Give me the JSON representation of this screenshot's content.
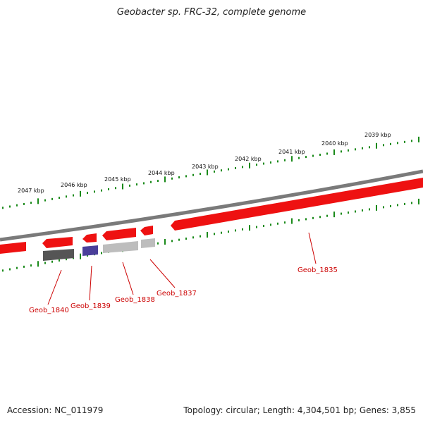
{
  "title": "Geobacter sp. FRC-32, complete genome",
  "footer": {
    "accession": "Accession: NC_011979",
    "topology": "Topology: circular; Length: 4,304,501 bp; Genes: 3,855"
  },
  "colors": {
    "backbone": "#7a7a7a",
    "gene_forward": "#ee1111",
    "gene_reverse_dark": "#555555",
    "gene_reverse_blue": "#4a3f9a",
    "gene_reverse_light": "#bdbdbd",
    "tick": "#1a8a1a",
    "label": "#cc0000"
  },
  "ruler_labels": [
    "2047 kbp",
    "2046 kbp",
    "2045 kbp",
    "2044 kbp",
    "2043 kbp",
    "2042 kbp",
    "2041 kbp",
    "2040 kbp",
    "2039 kbp"
  ],
  "gene_labels": [
    "Geob_1840",
    "Geob_1839",
    "Geob_1838",
    "Geob_1837",
    "Geob_1835"
  ]
}
